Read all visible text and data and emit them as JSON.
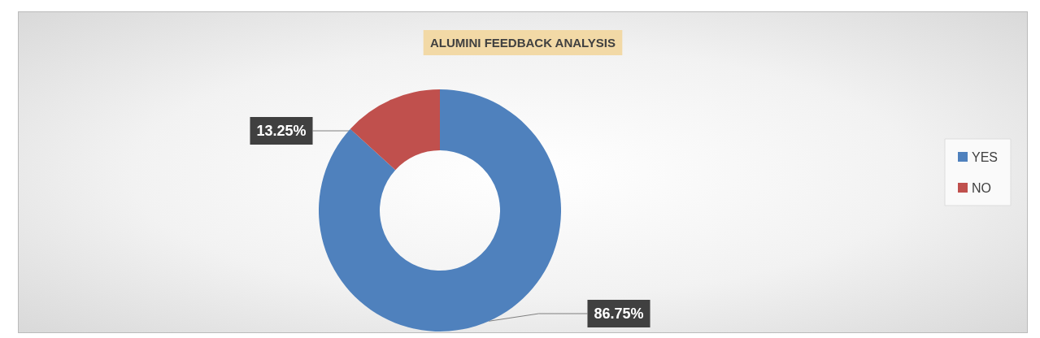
{
  "chart_data": {
    "type": "donut",
    "title": "ALUMINI FEEDBACK ANALYSIS",
    "categories": [
      "YES",
      "NO"
    ],
    "values": [
      86.75,
      13.25
    ],
    "colors": [
      "#4f81bd",
      "#c0504d"
    ],
    "value_labels": [
      "86.75%",
      "13.25%"
    ],
    "legend": "right"
  }
}
